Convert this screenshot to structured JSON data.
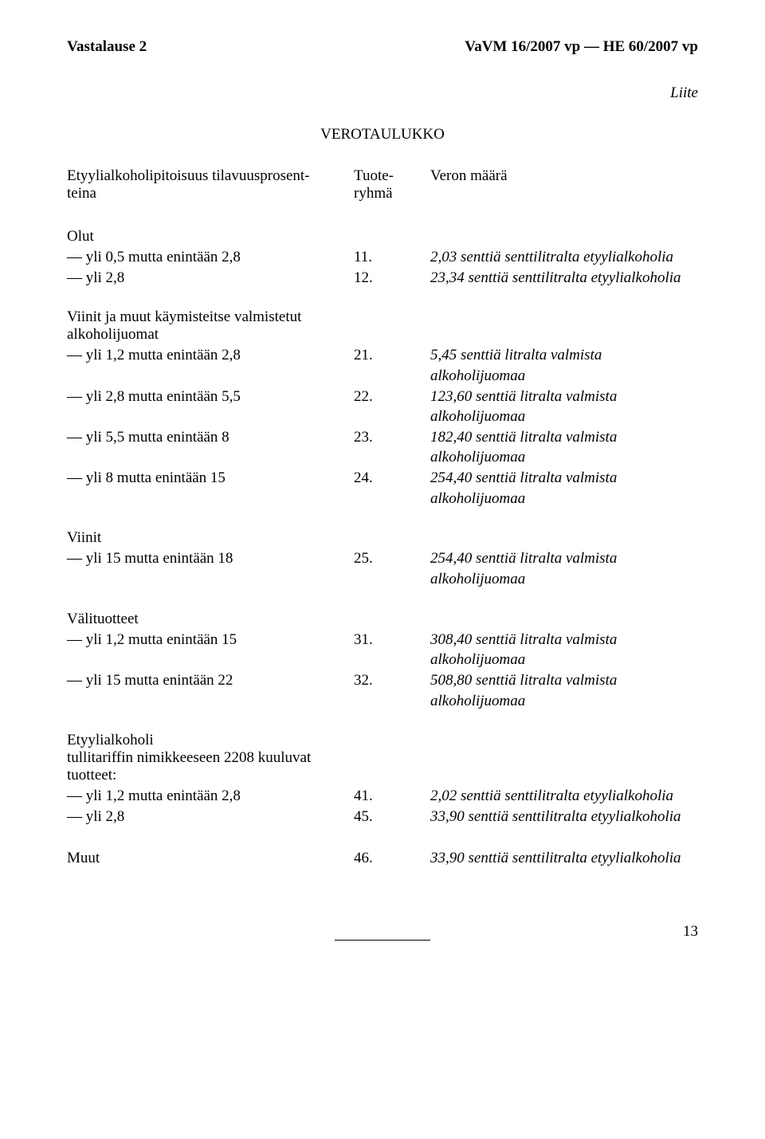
{
  "header": {
    "left": "Vastalause 2",
    "right": "VaVM 16/2007 vp — HE 60/2007 vp"
  },
  "liite": "Liite",
  "title": "VEROTAULUKKO",
  "columns": {
    "col1_line1": "Etyylialkoholipitoisuus tilavuusprosent-",
    "col1_line2": "teina",
    "col2_line1": "Tuote-",
    "col2_line2": "ryhmä",
    "col3": "Veron määrä"
  },
  "groups": [
    {
      "title": "Olut",
      "rows": [
        {
          "c1": "— yli 0,5 mutta enintään 2,8",
          "c2": "11.",
          "c3": "2,03 senttiä senttilitralta etyylialkoholia"
        },
        {
          "c1": "— yli 2,8",
          "c2": "12.",
          "c3": "23,34 senttiä senttilitralta etyylialkoholia"
        }
      ]
    },
    {
      "title": "Viinit ja muut käymisteitse valmistetut\nalkoholijuomat",
      "rows": [
        {
          "c1": "— yli 1,2 mutta enintään 2,8",
          "c2": "21.",
          "c3": "5,45 senttiä litralta valmista alkoholijuomaa"
        },
        {
          "c1": "— yli 2,8 mutta enintään 5,5",
          "c2": "22.",
          "c3": "123,60 senttiä litralta valmista alkoholijuomaa"
        },
        {
          "c1": "— yli 5,5 mutta enintään 8",
          "c2": "23.",
          "c3": "182,40 senttiä litralta valmista alkoholijuomaa"
        },
        {
          "c1": "— yli 8 mutta enintään 15",
          "c2": "24.",
          "c3": "254,40 senttiä litralta valmista alkoholijuomaa"
        }
      ]
    },
    {
      "title": "Viinit",
      "rows": [
        {
          "c1": "— yli 15 mutta enintään 18",
          "c2": "25.",
          "c3": "254,40 senttiä litralta valmista alkoholijuomaa"
        }
      ]
    },
    {
      "title": "Välituotteet",
      "rows": [
        {
          "c1": "— yli 1,2 mutta enintään 15",
          "c2": "31.",
          "c3": "308,40 senttiä litralta valmista alkoholijuomaa"
        },
        {
          "c1": "— yli 15 mutta enintään 22",
          "c2": "32.",
          "c3": "508,80 senttiä litralta valmista alkoholijuomaa"
        }
      ]
    },
    {
      "title": "Etyylialkoholi\ntullitariffin nimikkeeseen 2208 kuuluvat\ntuotteet:",
      "rows": [
        {
          "c1": "— yli 1,2 mutta enintään 2,8",
          "c2": "41.",
          "c3": "2,02 senttiä senttilitralta etyylialkoholia"
        },
        {
          "c1": "— yli 2,8",
          "c2": "45.",
          "c3": "33,90 senttiä senttilitralta etyylialkoholia"
        }
      ]
    },
    {
      "title": "",
      "single": {
        "c1": "Muut",
        "c2": "46.",
        "c3": "33,90 senttiä senttilitralta etyylialkoholia"
      }
    }
  ],
  "pagenum": "13"
}
